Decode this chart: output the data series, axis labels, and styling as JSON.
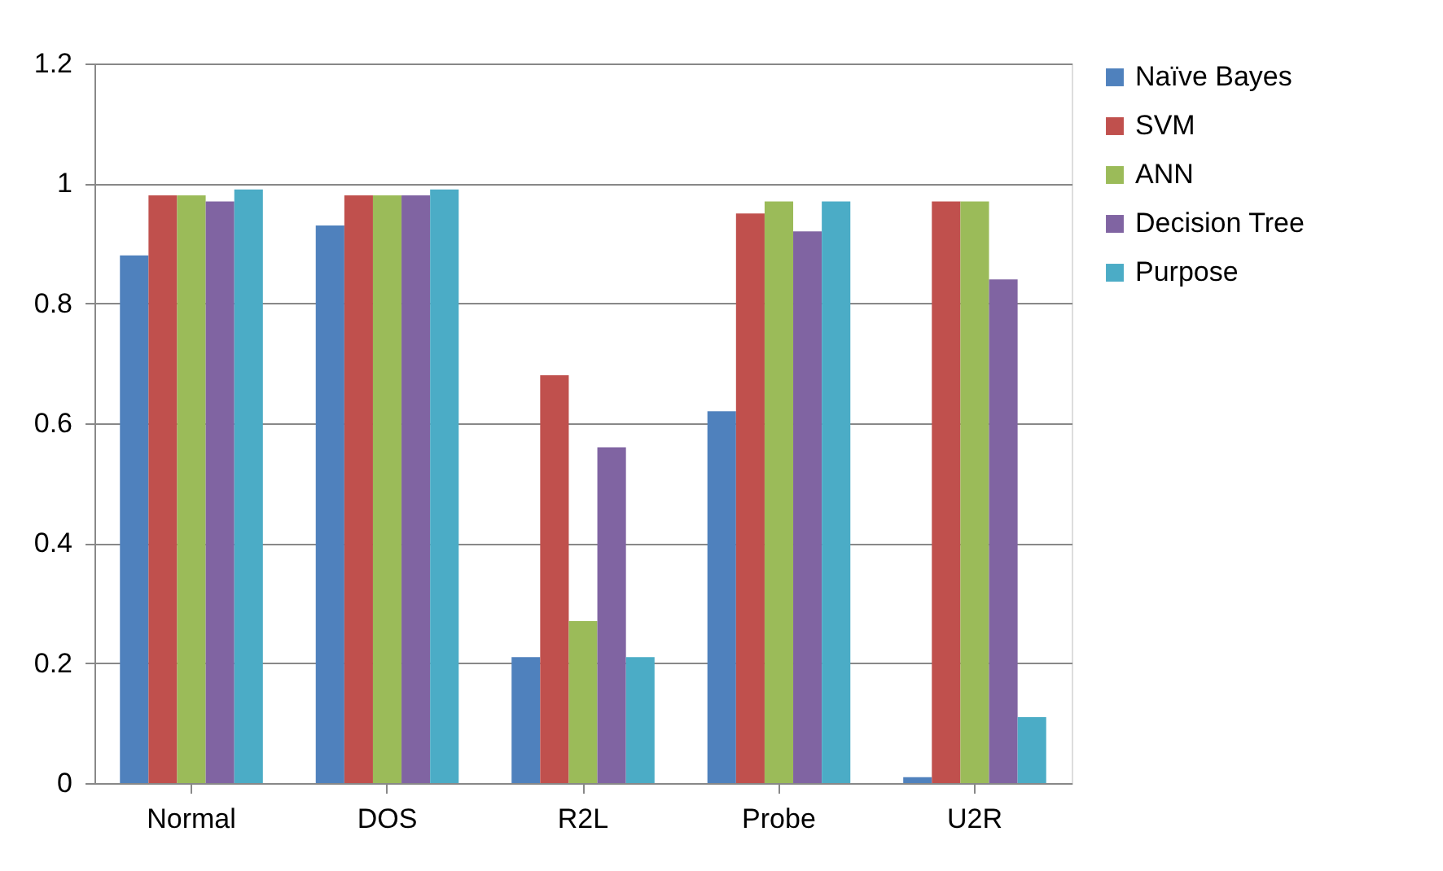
{
  "chart_data": {
    "type": "bar",
    "categories": [
      "Normal",
      "DOS",
      "R2L",
      "Probe",
      "U2R"
    ],
    "series": [
      {
        "name": "Naïve Bayes",
        "color": "#4f81bd",
        "values": [
          0.88,
          0.93,
          0.21,
          0.62,
          0.01
        ]
      },
      {
        "name": "SVM",
        "color": "#c0504d",
        "values": [
          0.98,
          0.98,
          0.68,
          0.95,
          0.97
        ]
      },
      {
        "name": "ANN",
        "color": "#9bbb59",
        "values": [
          0.98,
          0.98,
          0.27,
          0.97,
          0.97
        ]
      },
      {
        "name": "Decision Tree",
        "color": "#8064a2",
        "values": [
          0.97,
          0.98,
          0.56,
          0.92,
          0.84
        ]
      },
      {
        "name": "Purpose",
        "color": "#4bacc6",
        "values": [
          0.99,
          0.99,
          0.21,
          0.97,
          0.11
        ]
      }
    ],
    "ylim": [
      0,
      1.2
    ],
    "yticks": [
      0,
      0.2,
      0.4,
      0.6,
      0.8,
      1,
      1.2
    ],
    "grid": "y",
    "legend": "right"
  }
}
